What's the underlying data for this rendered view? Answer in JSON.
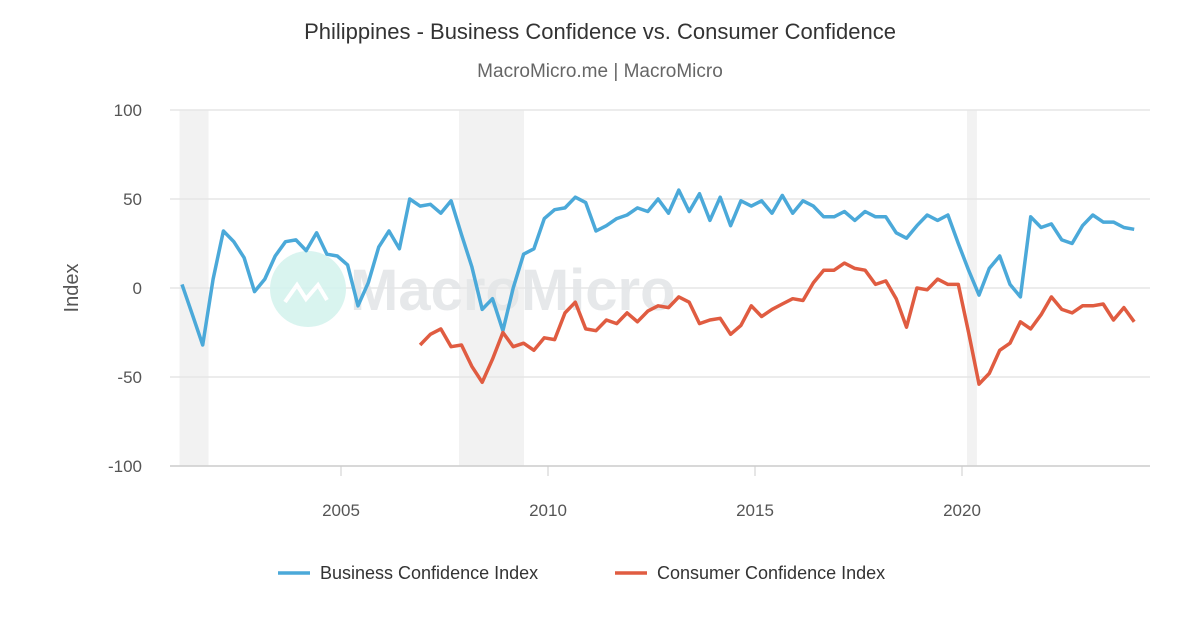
{
  "chart_data": {
    "type": "line",
    "title": "Philippines - Business Confidence vs. Consumer Confidence",
    "subtitle": "MacroMicro.me | MacroMicro",
    "watermark": "MacroMicro",
    "ylabel": "Index",
    "xlabel": "",
    "xlim": [
      2001,
      2024.4
    ],
    "ylim": [
      -100,
      100
    ],
    "x_ticks": [
      "2005",
      "2010",
      "2015",
      "2020"
    ],
    "x_tick_values": [
      2005,
      2010,
      2015,
      2020
    ],
    "y_ticks": [
      "100",
      "50",
      "0",
      "-50",
      "-100"
    ],
    "y_tick_values": [
      100,
      50,
      0,
      -50,
      -100
    ],
    "grid": "horizontal",
    "legend_position": "bottom",
    "shaded_periods": [
      [
        2001.1,
        2001.8
      ],
      [
        2007.85,
        2009.42
      ],
      [
        2020.12,
        2020.36
      ]
    ],
    "x_start": 2001.16,
    "x_step": 0.25,
    "series": [
      {
        "name": "Business Confidence Index",
        "color": "#4ba9d9",
        "start_index": 0,
        "values": [
          2,
          -15,
          -32,
          5,
          32,
          26,
          17,
          -2,
          5,
          18,
          26,
          27,
          21,
          31,
          19,
          18,
          13,
          -10,
          3,
          23,
          32,
          22,
          50,
          46,
          47,
          42,
          49,
          30,
          12,
          -12,
          -6,
          -24,
          0,
          19,
          22,
          39,
          44,
          45,
          51,
          48,
          32,
          35,
          39,
          41,
          45,
          43,
          50,
          42,
          55,
          43,
          53,
          38,
          51,
          35,
          49,
          46,
          49,
          42,
          52,
          42,
          49,
          46,
          40,
          40,
          43,
          38,
          43,
          40,
          40,
          31,
          28,
          35,
          41,
          38,
          41,
          25,
          10,
          -4,
          11,
          18,
          2,
          -5,
          40,
          34,
          36,
          27,
          25,
          35,
          41,
          37,
          37,
          34,
          33
        ]
      },
      {
        "name": "Consumer Confidence Index",
        "color": "#e05c41",
        "start_index": 23,
        "values": [
          -32,
          -26,
          -23,
          -33,
          -32,
          -44,
          -53,
          -40,
          -25,
          -33,
          -31,
          -35,
          -28,
          -29,
          -14,
          -8,
          -23,
          -24,
          -18,
          -20,
          -14,
          -19,
          -13,
          -10,
          -11,
          -5,
          -8,
          -20,
          -18,
          -17,
          -26,
          -21,
          -10,
          -16,
          -12,
          -9,
          -6,
          -7,
          3,
          10,
          10,
          14,
          11,
          10,
          2,
          4,
          -6,
          -22,
          0,
          -1,
          5,
          2,
          2,
          -25,
          -54,
          -48,
          -35,
          -31,
          -19,
          -23,
          -15,
          -5,
          -12,
          -14,
          -10,
          -10,
          -9,
          -18,
          -11,
          -19
        ]
      }
    ]
  }
}
